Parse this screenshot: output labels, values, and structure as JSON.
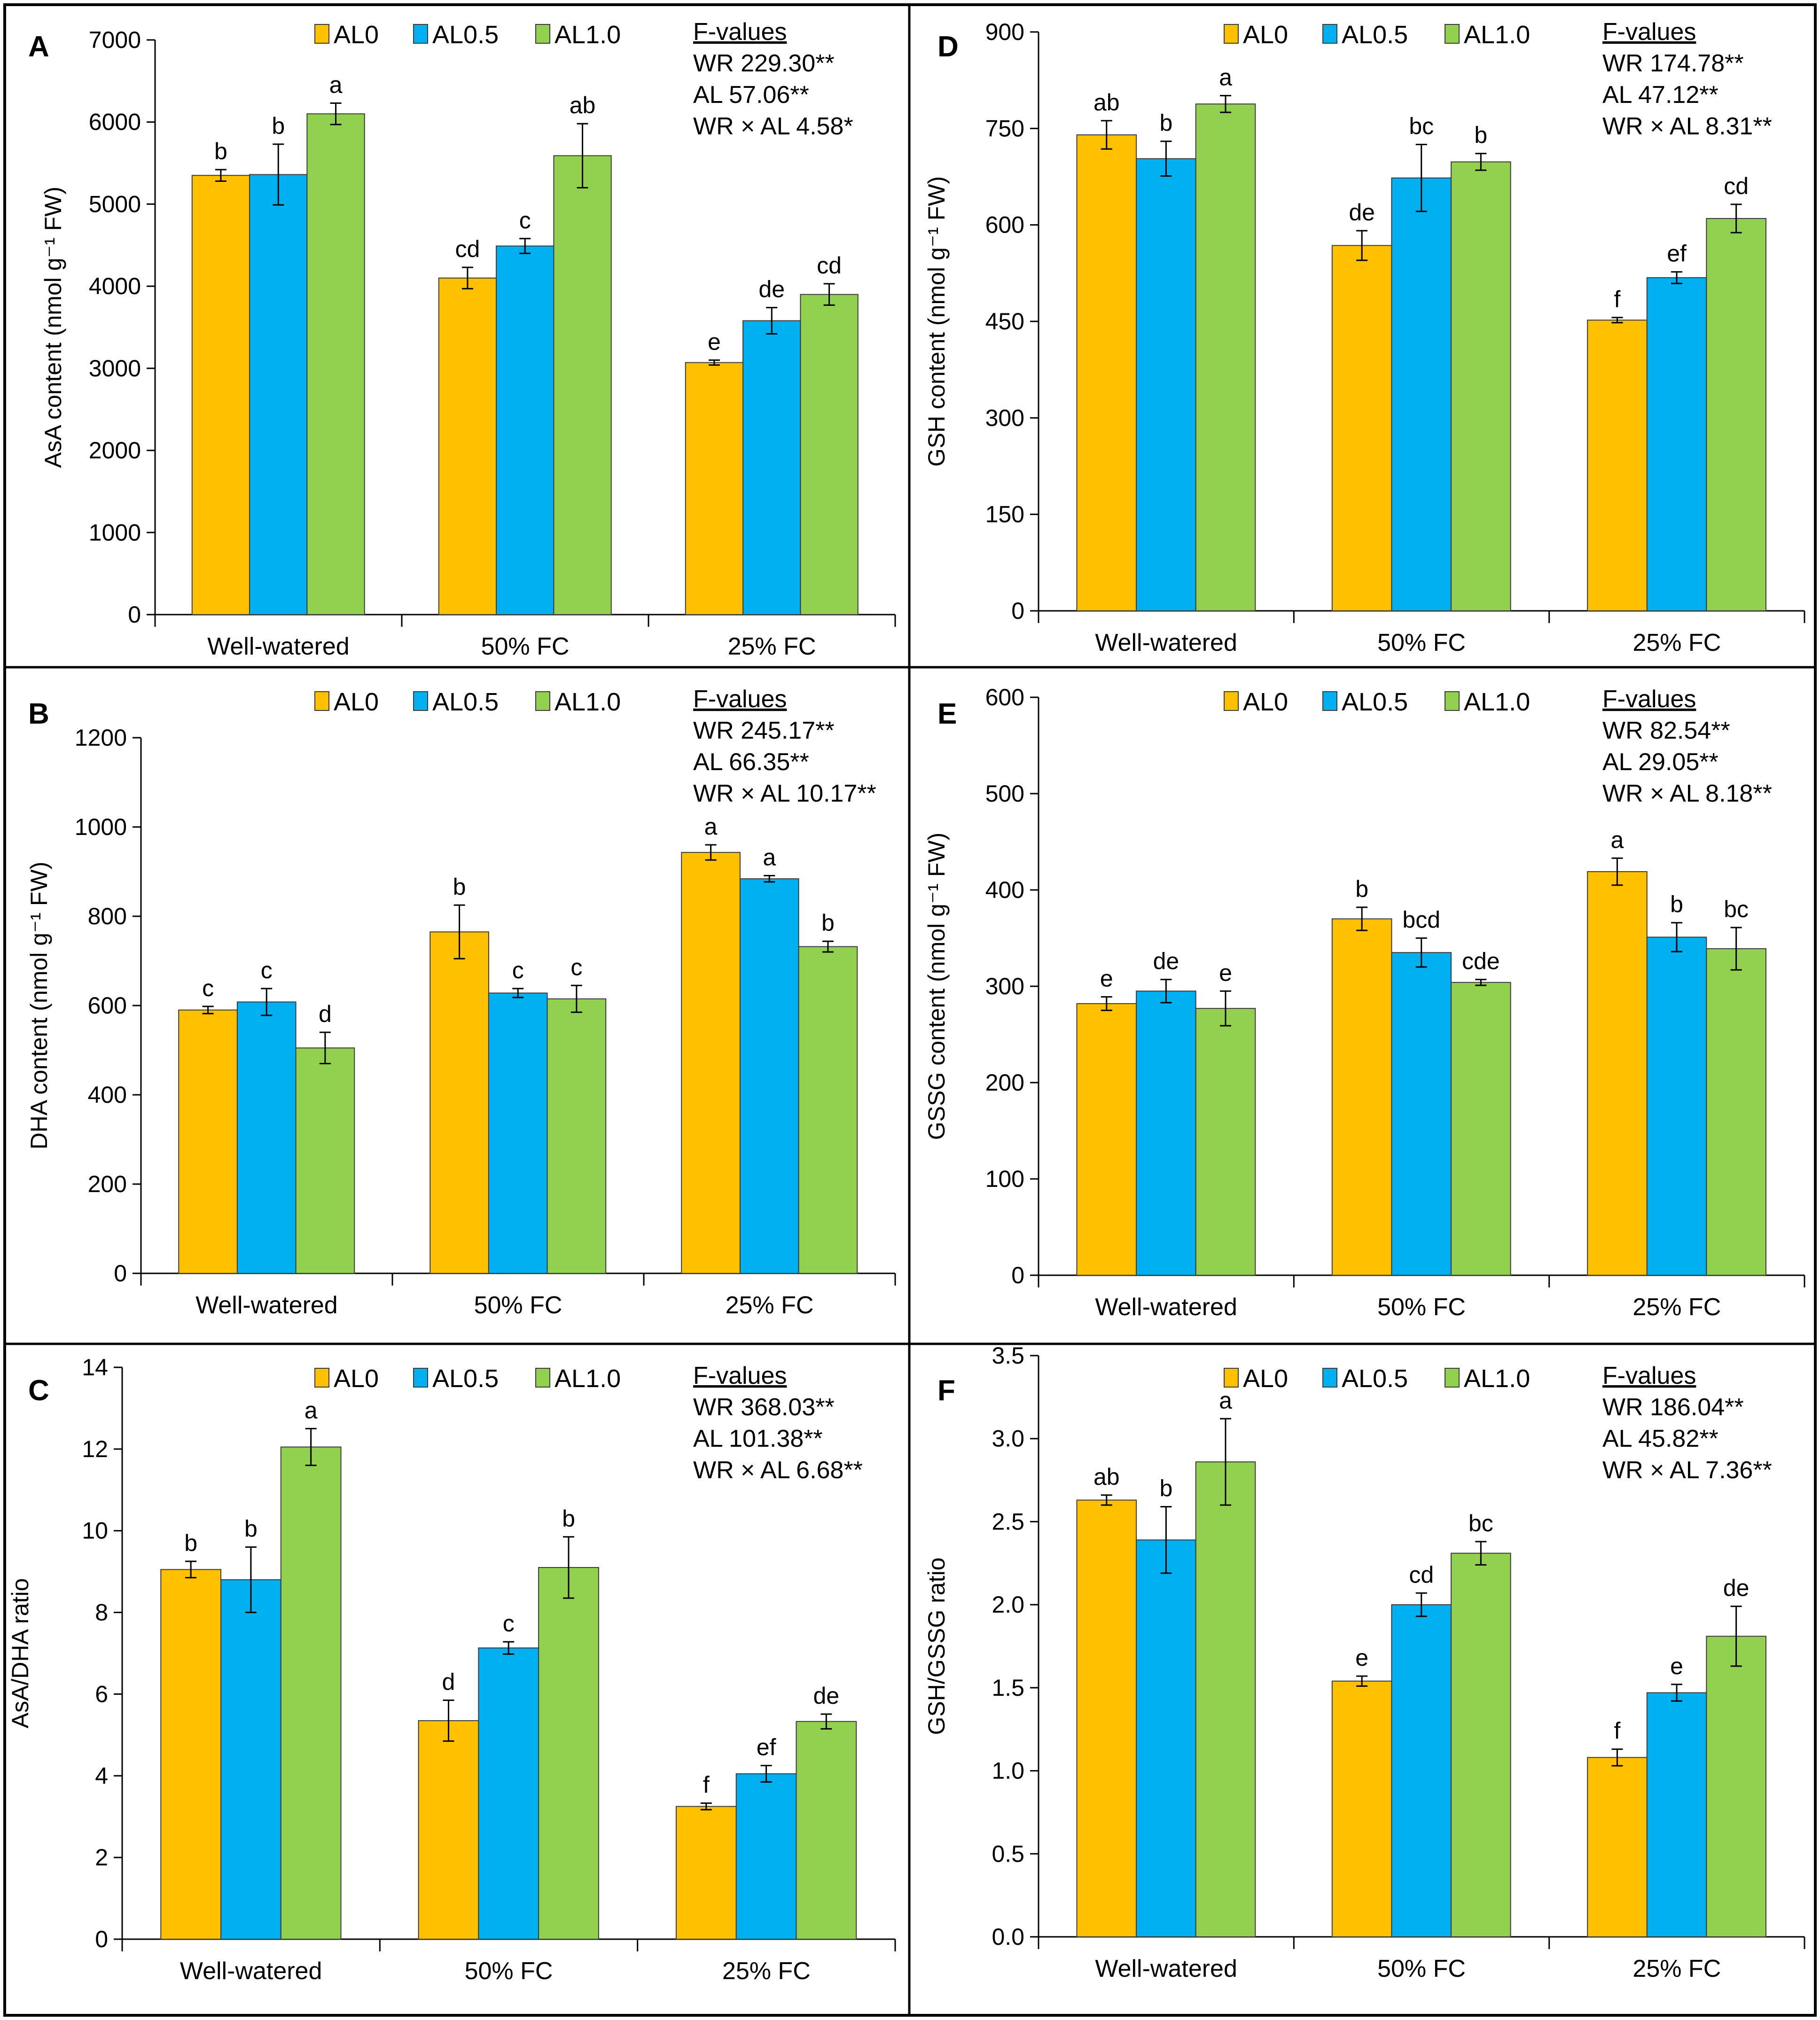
{
  "legend": {
    "labels": [
      "AL0",
      "AL0.5",
      "AL1.0"
    ],
    "colors": [
      "#FFC000",
      "#00B0F0",
      "#92D050"
    ]
  },
  "categories": [
    "Well-watered",
    "50% FC",
    "25% FC"
  ],
  "chart_data": [
    {
      "panel": "A",
      "type": "bar",
      "ylabel": "AsA content (nmol g⁻¹ FW)",
      "ylim": [
        0,
        7000
      ],
      "yticks": [
        0,
        1000,
        2000,
        3000,
        4000,
        5000,
        6000,
        7000
      ],
      "categories": [
        "Well-watered",
        "50% FC",
        "25% FC"
      ],
      "series": [
        {
          "name": "AL0",
          "values": [
            5350,
            4100,
            3070
          ],
          "errors": [
            70,
            130,
            30
          ],
          "letters": [
            "b",
            "cd",
            "e"
          ]
        },
        {
          "name": "AL0.5",
          "values": [
            5360,
            4490,
            3580
          ],
          "errors": [
            370,
            90,
            160
          ],
          "letters": [
            "b",
            "c",
            "de"
          ]
        },
        {
          "name": "AL1.0",
          "values": [
            6100,
            5590,
            3900
          ],
          "errors": [
            130,
            390,
            130
          ],
          "letters": [
            "a",
            "ab",
            "cd"
          ]
        }
      ],
      "f_values": {
        "title": "F-values",
        "lines": [
          "WR 229.30**",
          "AL 57.06**",
          "WR × AL 4.58*"
        ]
      }
    },
    {
      "panel": "B",
      "type": "bar",
      "ylabel": "DHA content (nmol g⁻¹ FW)",
      "ylim": [
        0,
        1200
      ],
      "yticks": [
        0,
        200,
        400,
        600,
        800,
        1000,
        1200
      ],
      "categories": [
        "Well-watered",
        "50% FC",
        "25% FC"
      ],
      "series": [
        {
          "name": "AL0",
          "values": [
            590,
            765,
            943
          ],
          "errors": [
            8,
            60,
            17
          ],
          "letters": [
            "c",
            "b",
            "a"
          ]
        },
        {
          "name": "AL0.5",
          "values": [
            608,
            628,
            884
          ],
          "errors": [
            30,
            10,
            7
          ],
          "letters": [
            "c",
            "c",
            "a"
          ]
        },
        {
          "name": "AL1.0",
          "values": [
            505,
            615,
            732
          ],
          "errors": [
            35,
            30,
            12
          ],
          "letters": [
            "d",
            "c",
            "b"
          ]
        }
      ],
      "f_values": {
        "title": "F-values",
        "lines": [
          "WR 245.17**",
          "AL 66.35**",
          "WR × AL 10.17**"
        ]
      }
    },
    {
      "panel": "C",
      "type": "bar",
      "ylabel": "AsA/DHA ratio",
      "ylim": [
        0,
        14
      ],
      "yticks": [
        0,
        2,
        4,
        6,
        8,
        10,
        12,
        14
      ],
      "categories": [
        "Well-watered",
        "50% FC",
        "25% FC"
      ],
      "series": [
        {
          "name": "AL0",
          "values": [
            9.05,
            5.35,
            3.25
          ],
          "errors": [
            0.2,
            0.5,
            0.08
          ],
          "letters": [
            "b",
            "d",
            "f"
          ]
        },
        {
          "name": "AL0.5",
          "values": [
            8.8,
            7.13,
            4.05
          ],
          "errors": [
            0.8,
            0.15,
            0.2
          ],
          "letters": [
            "b",
            "c",
            "ef"
          ]
        },
        {
          "name": "AL1.0",
          "values": [
            12.05,
            9.1,
            5.33
          ],
          "errors": [
            0.45,
            0.75,
            0.18
          ],
          "letters": [
            "a",
            "b",
            "de"
          ]
        }
      ],
      "f_values": {
        "title": "F-values",
        "lines": [
          "WR 368.03**",
          "AL 101.38**",
          "WR × AL 6.68**"
        ]
      }
    },
    {
      "panel": "D",
      "type": "bar",
      "ylabel": "GSH content (nmol g⁻¹ FW)",
      "ylim": [
        0,
        900
      ],
      "yticks": [
        0,
        150,
        300,
        450,
        600,
        750,
        900
      ],
      "categories": [
        "Well-watered",
        "50% FC",
        "25% FC"
      ],
      "series": [
        {
          "name": "AL0",
          "values": [
            740,
            568,
            452
          ],
          "errors": [
            22,
            23,
            4
          ],
          "letters": [
            "ab",
            "de",
            "f"
          ]
        },
        {
          "name": "AL0.5",
          "values": [
            703,
            673,
            518
          ],
          "errors": [
            27,
            52,
            9
          ],
          "letters": [
            "b",
            "bc",
            "ef"
          ]
        },
        {
          "name": "AL1.0",
          "values": [
            788,
            698,
            610
          ],
          "errors": [
            13,
            13,
            22
          ],
          "letters": [
            "a",
            "b",
            "cd"
          ]
        }
      ],
      "f_values": {
        "title": "F-values",
        "lines": [
          "WR 174.78**",
          "AL 47.12**",
          "WR × AL 8.31**"
        ]
      }
    },
    {
      "panel": "E",
      "type": "bar",
      "ylabel": "GSSG content (nmol g⁻¹ FW)",
      "ylim": [
        0,
        600
      ],
      "yticks": [
        0,
        100,
        200,
        300,
        400,
        500,
        600
      ],
      "categories": [
        "Well-watered",
        "50% FC",
        "25% FC"
      ],
      "series": [
        {
          "name": "AL0",
          "values": [
            282,
            370,
            419
          ],
          "errors": [
            7,
            12,
            14
          ],
          "letters": [
            "e",
            "b",
            "a"
          ]
        },
        {
          "name": "AL0.5",
          "values": [
            295,
            335,
            351
          ],
          "errors": [
            12,
            15,
            15
          ],
          "letters": [
            "de",
            "bcd",
            "b"
          ]
        },
        {
          "name": "AL1.0",
          "values": [
            277,
            304,
            339
          ],
          "errors": [
            18,
            3,
            22
          ],
          "letters": [
            "e",
            "cde",
            "bc"
          ]
        }
      ],
      "f_values": {
        "title": "F-values",
        "lines": [
          "WR 82.54**",
          "AL 29.05**",
          "WR × AL 8.18**"
        ]
      }
    },
    {
      "panel": "F",
      "type": "bar",
      "ylabel": "GSH/GSSG ratio",
      "ylim": [
        0,
        3.5
      ],
      "yticks": [
        "0.0",
        "0.5",
        "1.0",
        "1.5",
        "2.0",
        "2.5",
        "3.0",
        "3.5"
      ],
      "categories": [
        "Well-watered",
        "50% FC",
        "25% FC"
      ],
      "series": [
        {
          "name": "AL0",
          "values": [
            2.63,
            1.54,
            1.08
          ],
          "errors": [
            0.03,
            0.03,
            0.05
          ],
          "letters": [
            "ab",
            "e",
            "f"
          ]
        },
        {
          "name": "AL0.5",
          "values": [
            2.39,
            2.0,
            1.47
          ],
          "errors": [
            0.2,
            0.07,
            0.05
          ],
          "letters": [
            "b",
            "cd",
            "e"
          ]
        },
        {
          "name": "AL1.0",
          "values": [
            2.86,
            2.31,
            1.81
          ],
          "errors": [
            0.26,
            0.07,
            0.18
          ],
          "letters": [
            "a",
            "bc",
            "de"
          ]
        }
      ],
      "f_values": {
        "title": "F-values",
        "lines": [
          "WR 186.04**",
          "AL 45.82**",
          "WR × AL 7.36**"
        ]
      }
    }
  ]
}
